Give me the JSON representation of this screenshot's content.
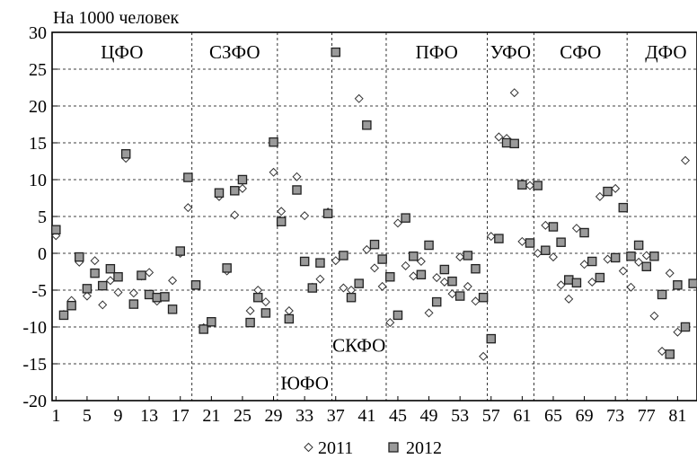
{
  "chart_data": {
    "type": "scatter",
    "title": "На 1000 человек",
    "xlabel": "",
    "ylabel": "",
    "xlim": [
      0.5,
      83.5
    ],
    "ylim": [
      -20,
      30
    ],
    "yticks": [
      -20,
      -15,
      -10,
      -5,
      0,
      5,
      10,
      15,
      20,
      25,
      30
    ],
    "xticks": [
      1,
      5,
      9,
      13,
      17,
      21,
      25,
      29,
      33,
      37,
      41,
      45,
      49,
      53,
      57,
      61,
      65,
      69,
      73,
      77,
      81
    ],
    "grid": "horizontal dashed",
    "legend_position": "bottom-center",
    "district_dividers": [
      18.5,
      29.5,
      36.5,
      43.5,
      56.5,
      62.5,
      74.5
    ],
    "district_labels": [
      {
        "text": "ЦФО",
        "x": 9.5,
        "y": 27.3
      },
      {
        "text": "СЗФО",
        "x": 24,
        "y": 27.3
      },
      {
        "text": "ЮФО",
        "x": 33,
        "y": -17.6
      },
      {
        "text": "СКФО",
        "x": 40,
        "y": -12.5
      },
      {
        "text": "ПФО",
        "x": 50,
        "y": 27.3
      },
      {
        "text": "УФО",
        "x": 59.5,
        "y": 27.3
      },
      {
        "text": "СФО",
        "x": 68.5,
        "y": 27.3
      },
      {
        "text": "ДФО",
        "x": 79.5,
        "y": 27.3
      }
    ],
    "series": [
      {
        "name": "2011",
        "marker": "diamond",
        "x": [
          1,
          2,
          3,
          4,
          5,
          6,
          7,
          8,
          9,
          10,
          11,
          12,
          13,
          14,
          15,
          16,
          17,
          18,
          19,
          20,
          21,
          22,
          23,
          24,
          25,
          26,
          27,
          28,
          29,
          30,
          31,
          32,
          33,
          34,
          35,
          36,
          37,
          38,
          39,
          40,
          41,
          42,
          43,
          44,
          45,
          46,
          47,
          48,
          49,
          50,
          51,
          52,
          53,
          54,
          55,
          56,
          57,
          58,
          59,
          60,
          61,
          62,
          63,
          64,
          65,
          66,
          67,
          68,
          69,
          70,
          71,
          72,
          73,
          74,
          75,
          76,
          77,
          78,
          79,
          80,
          81,
          82,
          83
        ],
        "values": [
          2.4,
          -8.3,
          -6.4,
          -1.2,
          -5.8,
          -1,
          -7,
          -3.7,
          -5.3,
          12.9,
          -5.4,
          -3.1,
          -2.6,
          -6.5,
          -5.9,
          -3.7,
          0,
          6.2,
          -4.3,
          -10.1,
          -9.3,
          7.7,
          -2.4,
          5.2,
          8.8,
          -7.8,
          -5,
          -6.6,
          11,
          5.7,
          -7.8,
          10.4,
          5.1,
          -4.6,
          -3.5,
          5.6,
          -1,
          -4.7,
          -5,
          21,
          0.5,
          -2,
          -4.5,
          -9.4,
          4.1,
          -1.7,
          -3.1,
          -1.1,
          -8.1,
          -3.3,
          -3.9,
          -5.5,
          -0.5,
          -4.5,
          -6.5,
          -14,
          2.3,
          15.8,
          15.6,
          21.8,
          1.6,
          9.2,
          0,
          3.8,
          -0.5,
          -4.3,
          -6.2,
          3.4,
          -1.5,
          -3.9,
          7.7,
          -0.8,
          8.8,
          -2.4,
          -4.6,
          -1.2,
          -0.3,
          -8.5,
          -13.3,
          -2.7,
          -10.7,
          12.6,
          -4.1
        ]
      },
      {
        "name": "2012",
        "marker": "square",
        "x": [
          1,
          2,
          3,
          4,
          5,
          6,
          7,
          8,
          9,
          10,
          11,
          12,
          13,
          14,
          15,
          16,
          17,
          18,
          19,
          20,
          21,
          22,
          23,
          24,
          25,
          26,
          27,
          28,
          29,
          30,
          31,
          32,
          33,
          34,
          35,
          36,
          37,
          38,
          39,
          40,
          41,
          42,
          43,
          44,
          45,
          46,
          47,
          48,
          49,
          50,
          51,
          52,
          53,
          54,
          55,
          56,
          57,
          58,
          59,
          60,
          61,
          62,
          63,
          64,
          65,
          66,
          67,
          68,
          69,
          70,
          71,
          72,
          73,
          74,
          75,
          76,
          77,
          78,
          79,
          80,
          81,
          82,
          83
        ],
        "values": [
          3.2,
          -8.4,
          -7.1,
          -0.5,
          -4.8,
          -2.7,
          -4.4,
          -2.1,
          -3.2,
          13.5,
          -6.9,
          -3,
          -5.6,
          -6,
          -5.9,
          -7.6,
          0.3,
          10.3,
          -4.3,
          -10.3,
          -9.3,
          8.2,
          -2,
          8.5,
          10,
          -9.4,
          -6,
          -8.1,
          15.1,
          4.3,
          -8.9,
          8.6,
          -1.1,
          -4.7,
          -1.3,
          5.4,
          27.3,
          -0.3,
          -6,
          -4.1,
          17.4,
          1.2,
          -0.8,
          -3.2,
          -8.4,
          4.8,
          -0.4,
          -2.9,
          1.1,
          -6.6,
          -2.2,
          -3.8,
          -5.8,
          -0.3,
          -2.1,
          -6,
          -11.6,
          2,
          15,
          14.9,
          9.3,
          1.4,
          9.2,
          0.4,
          3.6,
          1.5,
          -3.6,
          -4,
          2.8,
          -1.1,
          -3.3,
          8.4,
          -0.6,
          6.2,
          -0.4,
          1.1,
          -1.8,
          -0.4,
          -5.6,
          -13.7,
          -4.3,
          -10,
          -4.1
        ]
      }
    ]
  }
}
